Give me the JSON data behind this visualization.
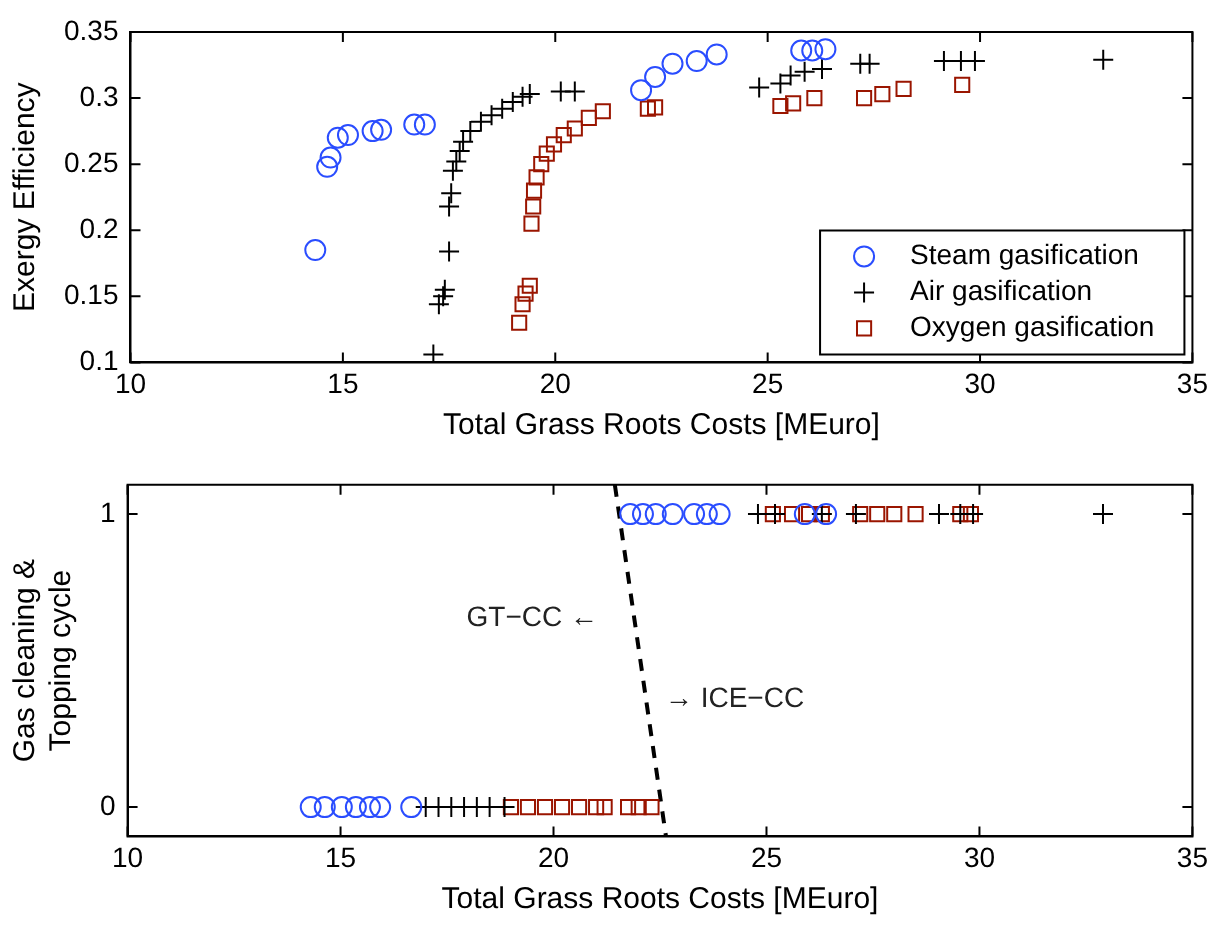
{
  "chart_data": [
    {
      "type": "scatter",
      "xlabel": "Total Grass Roots Costs [MEuro]",
      "ylabel": "Exergy Efficiency",
      "xlim": [
        10,
        35
      ],
      "xticks": [
        10,
        15,
        20,
        25,
        30,
        35
      ],
      "ylim": [
        0.1,
        0.35
      ],
      "yticks": [
        0.1,
        0.15,
        0.2,
        0.25,
        0.3,
        0.35
      ],
      "legend": "bottom right",
      "series": [
        {
          "name": "Steam gasification",
          "color": "#2a4dff",
          "marker": "circle",
          "x": [
            14.35,
            14.63,
            14.71,
            14.88,
            15.12,
            15.7,
            15.9,
            16.68,
            16.93,
            22.02,
            22.35,
            22.76,
            23.33,
            23.8,
            25.79,
            26.05,
            26.36
          ],
          "values": [
            0.185,
            0.248,
            0.255,
            0.27,
            0.272,
            0.275,
            0.276,
            0.28,
            0.28,
            0.306,
            0.316,
            0.326,
            0.328,
            0.333,
            0.336,
            0.336,
            0.337
          ]
        },
        {
          "name": "Air gasification",
          "color": "#000000",
          "marker": "cross",
          "x": [
            17.13,
            17.26,
            17.36,
            17.4,
            17.5,
            17.5,
            17.55,
            17.59,
            17.67,
            17.75,
            17.83,
            18.0,
            18.25,
            18.5,
            18.75,
            19.0,
            19.23,
            19.4,
            20.13,
            20.46,
            24.8,
            25.3,
            25.54,
            25.87,
            26.28,
            27.18,
            27.4,
            29.15,
            29.55,
            29.88,
            32.9
          ],
          "values": [
            0.106,
            0.144,
            0.15,
            0.155,
            0.184,
            0.218,
            0.228,
            0.245,
            0.252,
            0.26,
            0.267,
            0.275,
            0.282,
            0.287,
            0.292,
            0.297,
            0.301,
            0.303,
            0.305,
            0.305,
            0.308,
            0.311,
            0.317,
            0.32,
            0.322,
            0.326,
            0.326,
            0.328,
            0.328,
            0.328,
            0.329
          ]
        },
        {
          "name": "Oxygen gasification",
          "color": "#9a1500",
          "marker": "square",
          "x": [
            19.15,
            19.23,
            19.3,
            19.4,
            19.44,
            19.48,
            19.5,
            19.56,
            19.67,
            19.8,
            19.97,
            20.2,
            20.46,
            20.79,
            21.12,
            22.18,
            22.35,
            25.3,
            25.6,
            26.1,
            27.27,
            27.7,
            28.2,
            29.58
          ],
          "values": [
            0.13,
            0.144,
            0.152,
            0.158,
            0.205,
            0.218,
            0.23,
            0.24,
            0.25,
            0.258,
            0.265,
            0.272,
            0.277,
            0.285,
            0.29,
            0.292,
            0.293,
            0.294,
            0.296,
            0.3,
            0.3,
            0.303,
            0.307,
            0.31
          ]
        }
      ]
    },
    {
      "type": "scatter",
      "xlabel": "Total Grass Roots Costs [MEuro]",
      "ylabel": "Gas cleaning &\nTopping cycle",
      "xlim": [
        10,
        35
      ],
      "xticks": [
        10,
        15,
        20,
        25,
        30,
        35
      ],
      "ylim": [
        -0.1,
        1.1
      ],
      "yticks": [
        0,
        1
      ],
      "annotations": [
        "GT−CC ←",
        "→ ICE−CC"
      ],
      "series": [
        {
          "color": "#2a4dff",
          "marker": "circle",
          "x": [
            14.3,
            14.63,
            15.03,
            15.36,
            15.69,
            15.93,
            16.66,
            21.8,
            22.1,
            22.4,
            22.8,
            23.3,
            23.6,
            23.9,
            25.9,
            26.4
          ],
          "values": [
            0,
            0,
            0,
            0,
            0,
            0,
            0,
            1,
            1,
            1,
            1,
            1,
            1,
            1,
            1,
            1
          ]
        },
        {
          "color": "#000000",
          "marker": "cross",
          "x": [
            17.0,
            17.3,
            17.6,
            17.9,
            18.2,
            18.5,
            18.85,
            24.8,
            25.2,
            26.3,
            27.1,
            29.05,
            29.55,
            29.85,
            32.9
          ],
          "values": [
            0,
            0,
            0,
            0,
            0,
            0,
            0,
            1,
            1,
            1,
            1,
            1,
            1,
            1,
            1
          ]
        },
        {
          "color": "#9a1500",
          "marker": "square",
          "x": [
            19.0,
            19.4,
            19.8,
            20.2,
            20.6,
            21.0,
            21.2,
            21.75,
            22.0,
            22.3,
            25.15,
            25.6,
            26.0,
            26.3,
            27.2,
            27.6,
            28.0,
            28.5,
            29.55,
            29.8
          ],
          "values": [
            0,
            0,
            0,
            0,
            0,
            0,
            0,
            0,
            0,
            0,
            1,
            1,
            1,
            1,
            1,
            1,
            1,
            1,
            1,
            1
          ]
        },
        {
          "type": "line",
          "color": "#000000",
          "marker": "none",
          "line_style": "dashed",
          "x": [
            21.44,
            22.64
          ],
          "values": [
            1.1,
            -0.1
          ]
        }
      ]
    }
  ]
}
